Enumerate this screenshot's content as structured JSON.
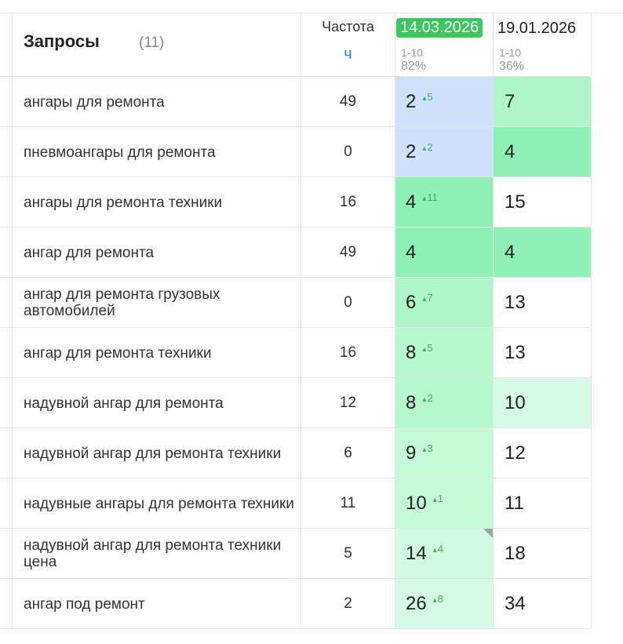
{
  "header": {
    "title": "Запросы",
    "count": "(11)",
    "freq_label": "Частота",
    "freq_sub": "ч",
    "date1": "14.03.2026",
    "date1_range": "1-10",
    "date1_pct": "82%",
    "date2": "19.01.2026",
    "date2_range": "1-10",
    "date2_pct": "36%"
  },
  "colors": {
    "badge": "#3cc85e",
    "blue_cell": "#cfe0fb",
    "green_dark": "#8ef0b4",
    "green_mid": "#aef6c8",
    "green_light": "#c5fad9",
    "green_pale": "#d6fbe4",
    "white": "#ffffff"
  },
  "rows": [
    {
      "query": "ангары для ремонта",
      "freq": "49",
      "pos1": "2",
      "delta": "5",
      "pos2": "7",
      "bg1": "#cfe0fb",
      "bg2": "#aef6c8"
    },
    {
      "query": "пневмоангары для ремонта",
      "freq": "0",
      "pos1": "2",
      "delta": "2",
      "pos2": "4",
      "bg1": "#cfe0fb",
      "bg2": "#8ef0b4"
    },
    {
      "query": "ангары для ремонта техники",
      "freq": "16",
      "pos1": "4",
      "delta": "11",
      "pos2": "15",
      "bg1": "#8ef0b4",
      "bg2": "#ffffff"
    },
    {
      "query": "ангар для ремонта",
      "freq": "49",
      "pos1": "4",
      "delta": "",
      "pos2": "4",
      "bg1": "#8ef0b4",
      "bg2": "#8ef0b4"
    },
    {
      "query": "ангар для ремонта грузовых автомобилей",
      "freq": "0",
      "pos1": "6",
      "delta": "7",
      "pos2": "13",
      "bg1": "#aef6c8",
      "bg2": "#ffffff"
    },
    {
      "query": "ангар для ремонта техники",
      "freq": "16",
      "pos1": "8",
      "delta": "5",
      "pos2": "13",
      "bg1": "#b8f8cf",
      "bg2": "#ffffff"
    },
    {
      "query": "надувной ангар для ремонта",
      "freq": "12",
      "pos1": "8",
      "delta": "2",
      "pos2": "10",
      "bg1": "#b8f8cf",
      "bg2": "#d6fbe4"
    },
    {
      "query": "надувной ангар для ремонта техники",
      "freq": "6",
      "pos1": "9",
      "delta": "3",
      "pos2": "12",
      "bg1": "#c5fad9",
      "bg2": "#ffffff"
    },
    {
      "query": "надувные ангары для ремонта техники",
      "freq": "11",
      "pos1": "10",
      "delta": "1",
      "pos2": "11",
      "bg1": "#c5fad9",
      "bg2": "#ffffff"
    },
    {
      "query": "надувной ангар для ремонта техники цена",
      "freq": "5",
      "pos1": "14",
      "delta": "4",
      "pos2": "18",
      "bg1": "#d0fbe0",
      "bg2": "#ffffff",
      "corner": true
    },
    {
      "query": "ангар под ремонт",
      "freq": "2",
      "pos1": "26",
      "delta": "8",
      "pos2": "34",
      "bg1": "#d6fbe4",
      "bg2": "#ffffff"
    }
  ]
}
